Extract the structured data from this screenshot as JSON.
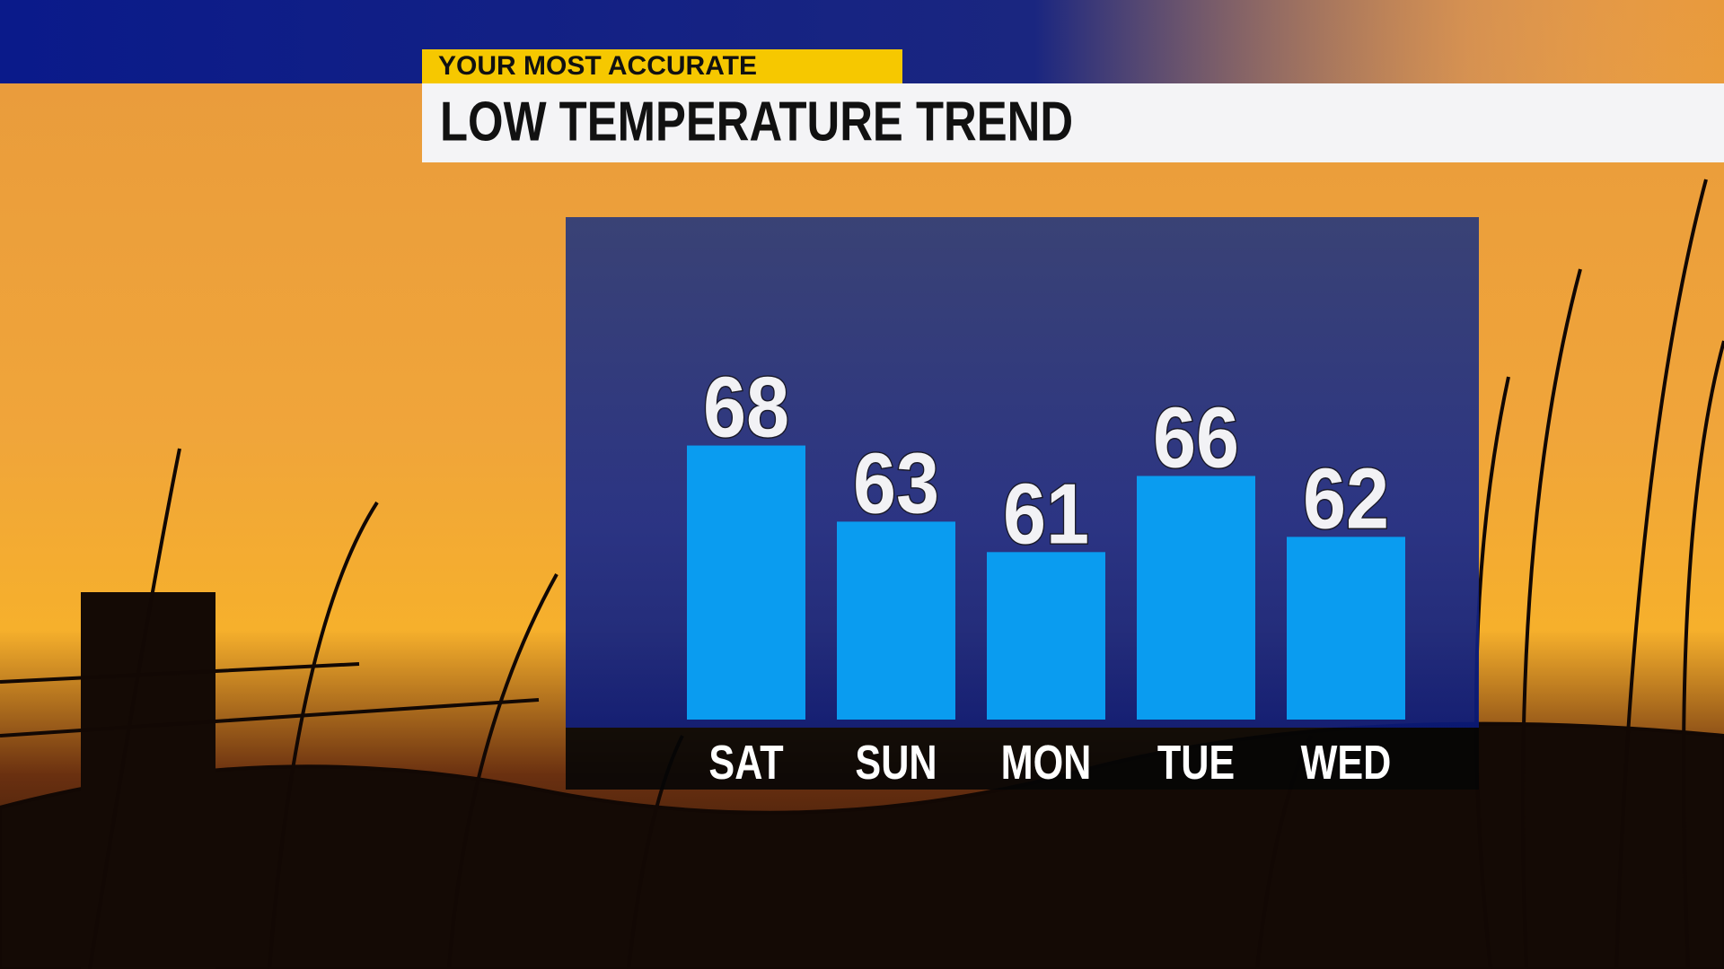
{
  "banner": "YOUR MOST ACCURATE",
  "chart_data": {
    "type": "bar",
    "title": "LOW TEMPERATURE TREND",
    "categories": [
      "SAT",
      "SUN",
      "MON",
      "TUE",
      "WED"
    ],
    "values": [
      68,
      63,
      61,
      66,
      62
    ],
    "color": "#0a9cf0",
    "ylim": [
      50,
      83
    ]
  }
}
